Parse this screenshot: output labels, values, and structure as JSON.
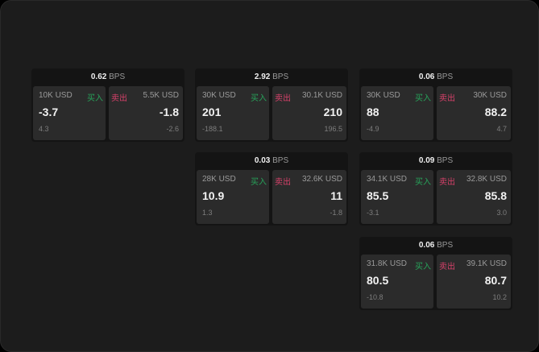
{
  "colors": {
    "buy": "#27a35a",
    "sell": "#d6416a",
    "background": "#1c1c1c"
  },
  "labels": {
    "buy": "买入",
    "sell": "卖出",
    "unit": "BPS"
  },
  "cards": [
    {
      "spread": "0.62",
      "buy": {
        "qty": "10K USD",
        "price": "-3.7",
        "change": "4.3"
      },
      "sell": {
        "qty": "5.5K USD",
        "price": "-1.8",
        "change": "-2.6"
      }
    },
    {
      "spread": "2.92",
      "buy": {
        "qty": "30K USD",
        "price": "201",
        "change": "-188.1"
      },
      "sell": {
        "qty": "30.1K USD",
        "price": "210",
        "change": "196.5"
      }
    },
    {
      "spread": "0.06",
      "buy": {
        "qty": "30K USD",
        "price": "88",
        "change": "-4.9"
      },
      "sell": {
        "qty": "30K USD",
        "price": "88.2",
        "change": "4.7"
      }
    },
    {
      "spread": "0.03",
      "buy": {
        "qty": "28K USD",
        "price": "10.9",
        "change": "1.3"
      },
      "sell": {
        "qty": "32.6K USD",
        "price": "11",
        "change": "-1.8"
      }
    },
    {
      "spread": "0.09",
      "buy": {
        "qty": "34.1K USD",
        "price": "85.5",
        "change": "-3.1"
      },
      "sell": {
        "qty": "32.8K USD",
        "price": "85.8",
        "change": "3.0"
      }
    },
    {
      "spread": "0.06",
      "buy": {
        "qty": "31.8K USD",
        "price": "80.5",
        "change": "-10.8"
      },
      "sell": {
        "qty": "39.1K USD",
        "price": "80.7",
        "change": "10.2"
      }
    }
  ]
}
